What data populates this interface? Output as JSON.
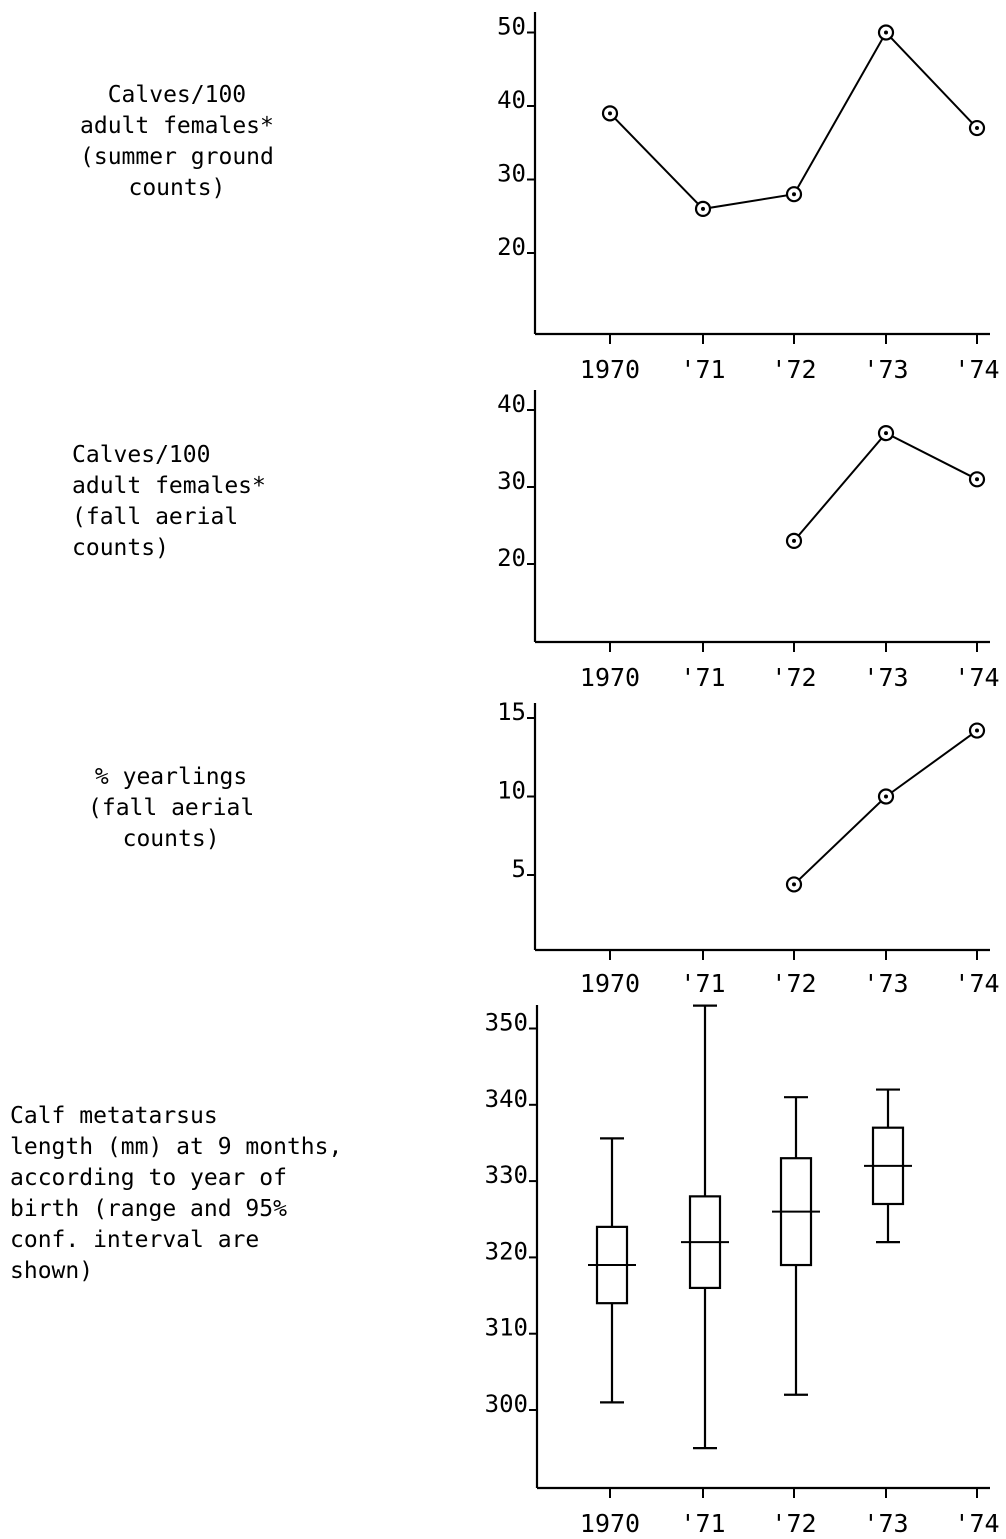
{
  "chart_data": [
    {
      "type": "line",
      "title": "Calves/100\nadult females*\n(summer ground\ncounts)",
      "categories": [
        "1970",
        "'71",
        "'72",
        "'73",
        "'74"
      ],
      "yticks": [
        "50",
        "40",
        "30",
        "20"
      ],
      "ylim": [
        10,
        52
      ],
      "series": [
        {
          "values": [
            39,
            26,
            28,
            50,
            37
          ]
        }
      ],
      "grid": false
    },
    {
      "type": "line",
      "title": "Calves/100\nadult females*\n(fall aerial\ncounts)",
      "categories": [
        "1970",
        "'71",
        "'72",
        "'73",
        "'74"
      ],
      "yticks": [
        "40",
        "30",
        "20"
      ],
      "ylim": [
        10,
        42
      ],
      "series": [
        {
          "values": [
            null,
            null,
            23,
            37,
            31
          ]
        }
      ],
      "grid": false
    },
    {
      "type": "line",
      "title": "% yearlings\n(fall aerial\ncounts)",
      "categories": [
        "1970",
        "'71",
        "'72",
        "'73",
        "'74"
      ],
      "yticks": [
        "15",
        "10",
        "5"
      ],
      "ylim": [
        0,
        16
      ],
      "series": [
        {
          "values": [
            null,
            null,
            4.4,
            10,
            14.2
          ]
        }
      ],
      "grid": false
    },
    {
      "type": "box",
      "title": "Calf metatarsus\nlength (mm) at 9 months,\naccording to year of\nbirth (range and 95%\nconf. interval are\nshown)",
      "categories": [
        "1970",
        "'71",
        "'72",
        "'73",
        "'74"
      ],
      "yticks": [
        "350",
        "340",
        "330",
        "320",
        "310",
        "300"
      ],
      "ylim": [
        289,
        353
      ],
      "boxes": [
        {
          "category": "1970",
          "min": 301,
          "q_low": 314,
          "mid": 319,
          "q_high": 324,
          "max": 335.6
        },
        {
          "category": "'71",
          "min": 295,
          "q_low": 316,
          "mid": 322,
          "q_high": 328,
          "max": 353
        },
        {
          "category": "'72",
          "min": 302,
          "q_low": 319,
          "mid": 326,
          "q_high": 333,
          "max": 341
        },
        {
          "category": "'73",
          "min": 322,
          "q_low": 327,
          "mid": 332,
          "q_high": 337,
          "max": 342
        }
      ],
      "grid": false
    }
  ]
}
